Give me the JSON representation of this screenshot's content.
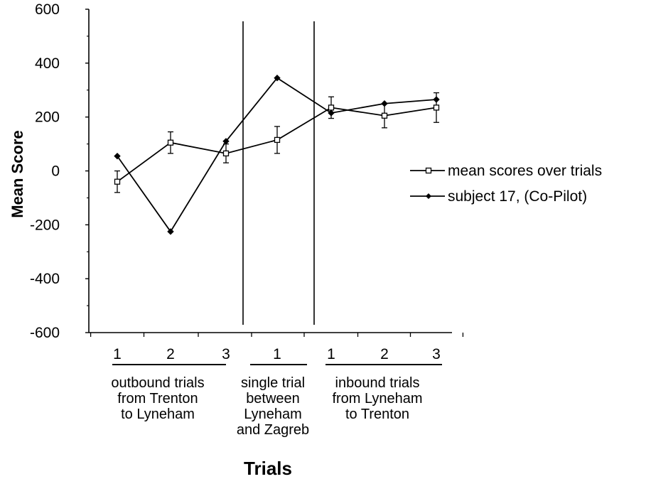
{
  "chart_data": {
    "type": "line",
    "ylabel": "Mean Score",
    "xlabel": "Trials",
    "ylim": [
      -600,
      600
    ],
    "yticks": [
      600,
      400,
      200,
      0,
      -200,
      -400,
      -600
    ],
    "categories": [
      "1",
      "2",
      "3",
      "1",
      "1",
      "2",
      "3"
    ],
    "groups": [
      {
        "lines": [
          "outbound trials",
          "from Trenton",
          "to Lyneham"
        ],
        "start": 0,
        "end": 2
      },
      {
        "lines": [
          "single trial",
          "between",
          "Lyneham",
          "and Zagreb"
        ],
        "start": 3,
        "end": 3
      },
      {
        "lines": [
          "inbound trials",
          "from Lyneham",
          "to Trenton"
        ],
        "start": 4,
        "end": 6
      }
    ],
    "dividers_after": [
      2,
      3
    ],
    "series": [
      {
        "name": "mean scores over trials",
        "marker": "open-square",
        "values": [
          -40,
          105,
          65,
          115,
          235,
          205,
          235
        ],
        "error": [
          40,
          40,
          35,
          50,
          40,
          45,
          55
        ]
      },
      {
        "name": "subject 17, (Co-Pilot)",
        "marker": "filled-diamond",
        "values": [
          55,
          -225,
          110,
          345,
          215,
          250,
          265
        ],
        "error": null
      }
    ],
    "legend_position": "right"
  }
}
